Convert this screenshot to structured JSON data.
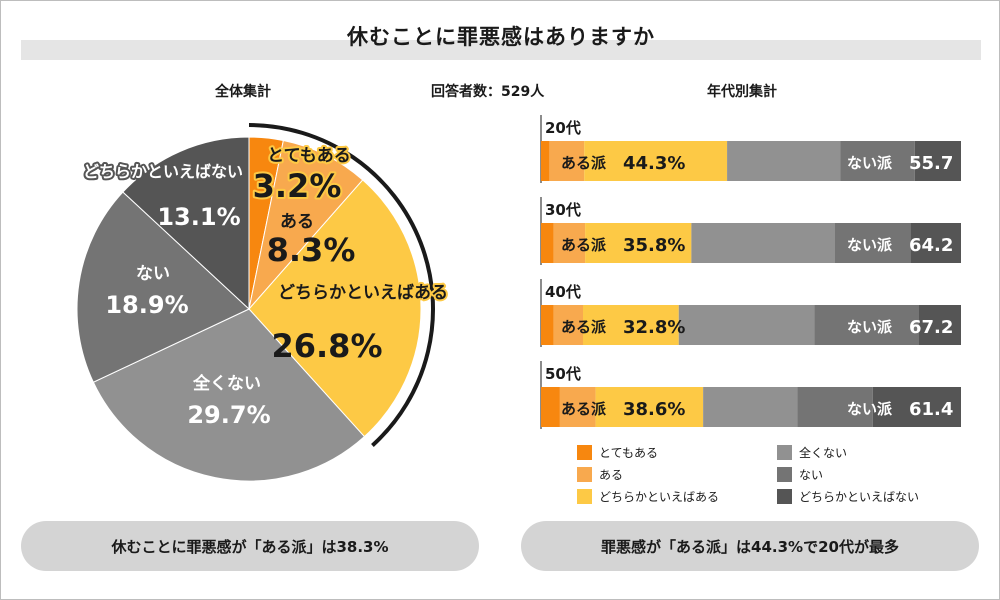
{
  "title": "休むことに罪悪感はありますか",
  "respondents": "回答者数：529人",
  "pie_title": "全体集計",
  "age_title": "年代別集計",
  "colors": {
    "とてもある": "#f7870f",
    "ある": "#f8a94e",
    "どちらかといえばある": "#fdc945",
    "全くない": "#919191",
    "ない": "#747474",
    "どちらかといえばない": "#555555"
  },
  "chart_data": [
    {
      "type": "pie",
      "title": "全体集計",
      "slices": [
        {
          "label": "とてもある",
          "value": 3.2,
          "display": "3.2%"
        },
        {
          "label": "ある",
          "value": 8.3,
          "display": "8.3%"
        },
        {
          "label": "どちらかといえばある",
          "value": 26.8,
          "display": "26.8%"
        },
        {
          "label": "全くない",
          "value": 29.7,
          "display": "29.7%"
        },
        {
          "label": "ない",
          "value": 18.9,
          "display": "18.9%"
        },
        {
          "label": "どちらかといえばない",
          "value": 13.1,
          "display": "13.1%"
        }
      ]
    },
    {
      "type": "bar",
      "stacked": true,
      "orientation": "horizontal",
      "title": "年代別集計",
      "categories": [
        "20代",
        "30代",
        "40代",
        "50代"
      ],
      "series": [
        {
          "name": "とてもある",
          "values": [
            2,
            3,
            3,
            4.5
          ]
        },
        {
          "name": "ある",
          "values": [
            8.3,
            7.5,
            7,
            8.5
          ]
        },
        {
          "name": "どちらかといえばある",
          "values": [
            34,
            25.3,
            22.8,
            25.6
          ]
        },
        {
          "name": "全くない",
          "values": [
            27,
            34.2,
            32.3,
            22.4
          ]
        },
        {
          "name": "ない",
          "values": [
            17.7,
            18,
            24.9,
            18
          ]
        },
        {
          "name": "どちらかといえばない",
          "values": [
            11,
            12,
            10,
            21
          ]
        }
      ],
      "group_labels": {
        "yes": "ある派",
        "no": "ない派"
      },
      "yes_values": [
        "44.3%",
        "35.8%",
        "32.8%",
        "38.6%"
      ],
      "no_values": [
        "55.7",
        "64.2",
        "67.2",
        "61.4"
      ]
    }
  ],
  "legend": [
    "とてもある",
    "ある",
    "どちらかといえばある",
    "全くない",
    "ない",
    "どちらかといえばない"
  ],
  "summary_left": "休むことに罪悪感が「ある派」は38.3%",
  "summary_right": "罪悪感が「ある派」は44.3%で20代が最多"
}
